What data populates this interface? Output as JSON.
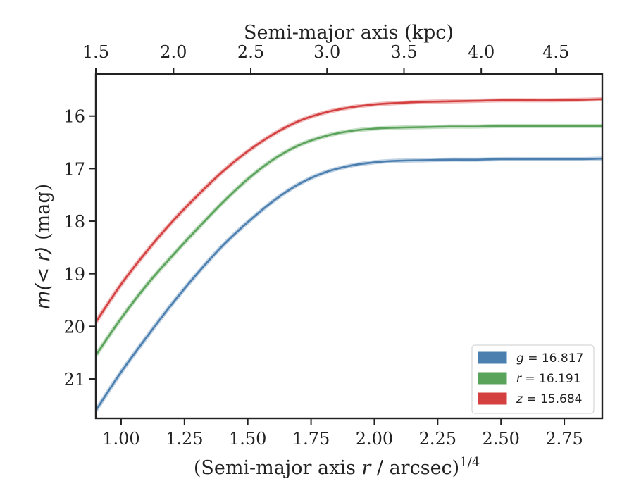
{
  "chart_data": {
    "type": "line",
    "xlabel": "(Semi-major axis r / arcsec)",
    "xlabel_parts": {
      "prefix": "(Semi-major axis ",
      "var": "r",
      "suffix": " / arcsec)",
      "exponent": "1/4"
    },
    "ylabel": "m(< r) (mag)",
    "ylabel_parts": {
      "math": "m(< r)",
      "unit": " (mag)"
    },
    "top_xlabel": "Semi-major axis (kpc)",
    "xlim": [
      0.9,
      2.9
    ],
    "ylim": [
      21.75,
      15.2
    ],
    "y_inverted": true,
    "x_ticks": [
      1.0,
      1.25,
      1.5,
      1.75,
      2.0,
      2.25,
      2.5,
      2.75
    ],
    "x_tick_labels": [
      "1.00",
      "1.25",
      "1.50",
      "1.75",
      "2.00",
      "2.25",
      "2.50",
      "2.75"
    ],
    "y_ticks": [
      16,
      17,
      18,
      19,
      20,
      21
    ],
    "y_tick_labels": [
      "16",
      "17",
      "18",
      "19",
      "20",
      "21"
    ],
    "top_x_ticks": [
      1.5,
      2.0,
      2.5,
      3.0,
      3.5,
      4.0,
      4.5
    ],
    "top_x_tick_labels": [
      "1.5",
      "2.0",
      "2.5",
      "3.0",
      "3.5",
      "4.0",
      "4.5"
    ],
    "top_x_tick_positions": [
      0.9,
      1.207,
      1.512,
      1.813,
      2.117,
      2.422,
      2.717
    ],
    "legend_position": "lower-right",
    "series": [
      {
        "name": "g",
        "label_var": "g",
        "label_value": " = 16.817",
        "color": "#4a7fb0",
        "x": [
          0.9,
          1.0,
          1.1,
          1.2,
          1.3,
          1.4,
          1.5,
          1.6,
          1.7,
          1.8,
          1.9,
          2.0,
          2.1,
          2.2,
          2.3,
          2.4,
          2.5,
          2.6,
          2.7,
          2.82,
          2.9
        ],
        "y": [
          21.6,
          20.87,
          20.21,
          19.58,
          19.0,
          18.47,
          18.02,
          17.62,
          17.3,
          17.08,
          16.95,
          16.88,
          16.85,
          16.84,
          16.83,
          16.83,
          16.82,
          16.82,
          16.82,
          16.82,
          16.81
        ]
      },
      {
        "name": "r",
        "label_var": "r",
        "label_value": " = 16.191",
        "color": "#5aa35a",
        "x": [
          0.9,
          1.0,
          1.1,
          1.2,
          1.3,
          1.4,
          1.5,
          1.6,
          1.7,
          1.8,
          1.9,
          2.0,
          2.1,
          2.2,
          2.3,
          2.4,
          2.5,
          2.6,
          2.7,
          2.82,
          2.9
        ],
        "y": [
          20.55,
          19.85,
          19.22,
          18.67,
          18.15,
          17.65,
          17.2,
          16.83,
          16.56,
          16.39,
          16.29,
          16.24,
          16.22,
          16.21,
          16.2,
          16.2,
          16.19,
          16.19,
          16.19,
          16.19,
          16.19
        ]
      },
      {
        "name": "z",
        "label_var": "z",
        "label_value": " = 15.684",
        "color": "#d43f3f",
        "x": [
          0.9,
          1.0,
          1.1,
          1.2,
          1.3,
          1.4,
          1.5,
          1.6,
          1.7,
          1.8,
          1.9,
          2.0,
          2.1,
          2.2,
          2.3,
          2.4,
          2.5,
          2.6,
          2.7,
          2.82,
          2.9
        ],
        "y": [
          19.92,
          19.2,
          18.58,
          18.02,
          17.52,
          17.06,
          16.67,
          16.35,
          16.1,
          15.94,
          15.84,
          15.78,
          15.75,
          15.73,
          15.72,
          15.71,
          15.7,
          15.7,
          15.7,
          15.69,
          15.68
        ]
      }
    ]
  }
}
